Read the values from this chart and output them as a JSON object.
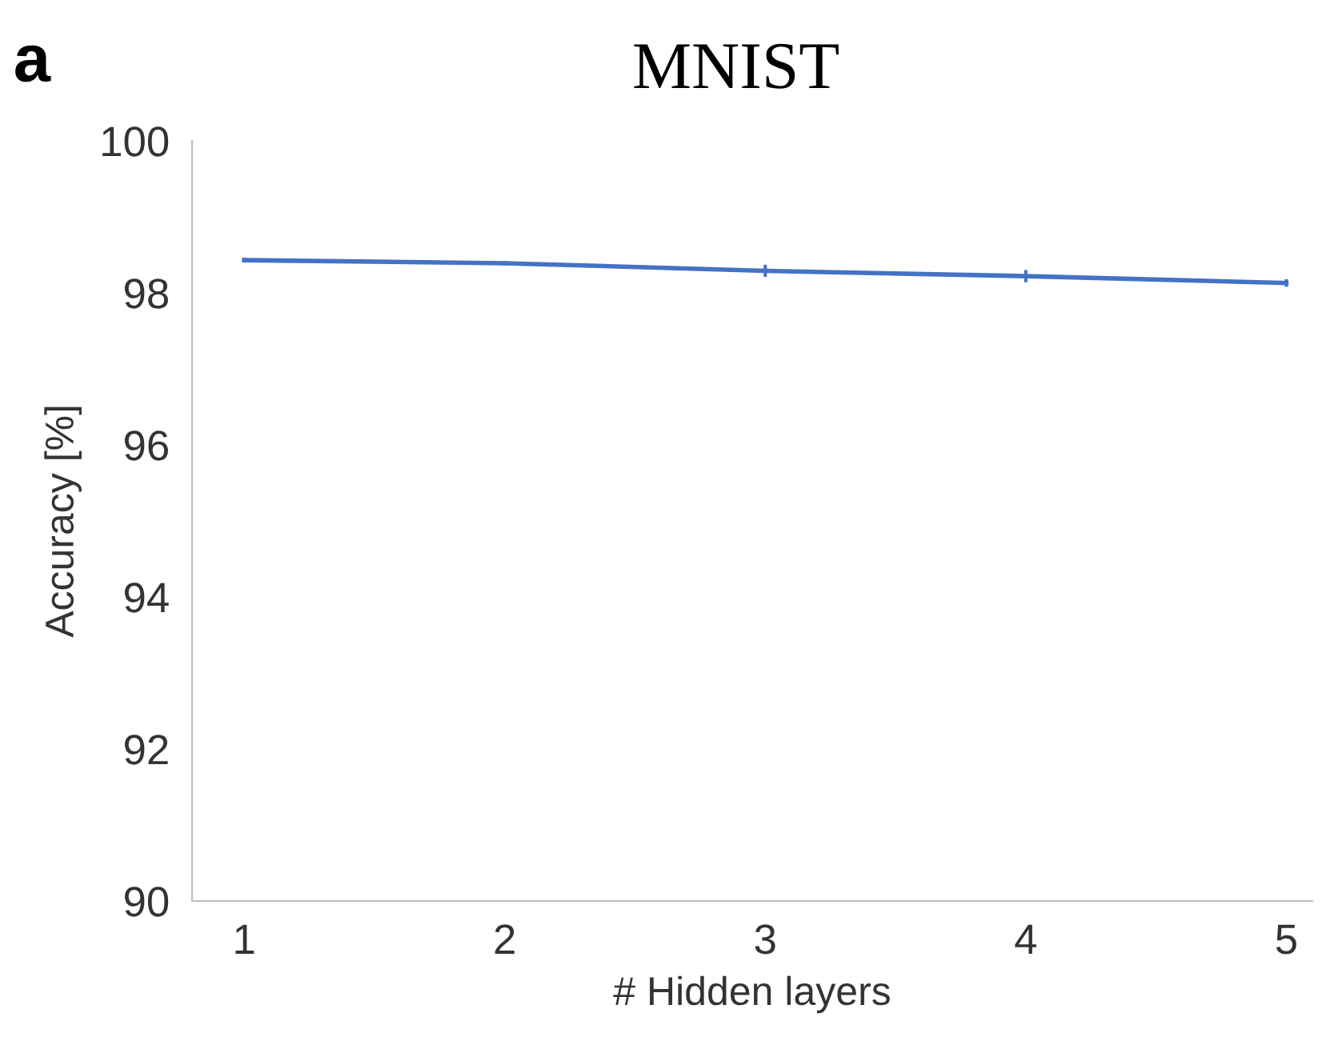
{
  "chart_data": {
    "type": "line",
    "title": "MNIST",
    "xlabel": "# Hidden layers",
    "ylabel": "Accuracy [%]",
    "annotations": [
      "a"
    ],
    "x": [
      1,
      2,
      3,
      4,
      5
    ],
    "series": [
      {
        "color": "#4472c4",
        "values": [
          98.43,
          98.39,
          98.29,
          98.22,
          98.13
        ],
        "errors": [
          0.03,
          0.03,
          0.08,
          0.08,
          0.05
        ]
      }
    ],
    "xlim": [
      0.8,
      5.1
    ],
    "xticks": [
      1,
      2,
      3,
      4,
      5
    ],
    "ylim": [
      90,
      100
    ],
    "yticks": [
      90,
      92,
      94,
      96,
      98,
      100
    ],
    "grid": false,
    "legend": false,
    "marker": "none",
    "line_style": "solid"
  }
}
